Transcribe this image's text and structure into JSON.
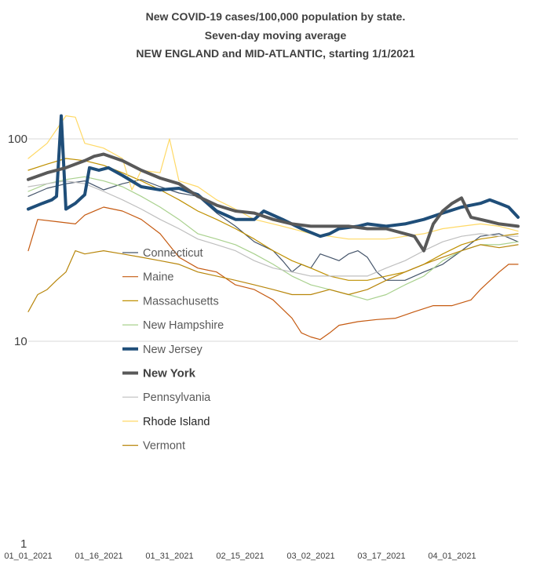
{
  "chart_data": {
    "type": "line",
    "title_lines": [
      "New COVID-19 cases/100,000 population by state.",
      "Seven-day moving average",
      "NEW ENGLAND and MID-ATLANTIC, starting 1/1/2021"
    ],
    "y_scale": "log",
    "ylim": [
      1,
      100
    ],
    "y_ticks": [
      "100",
      "10",
      "1"
    ],
    "x_start": "01_01_2021",
    "x_end": "04_13_2021",
    "x_ticks": [
      "01_01_2021",
      "01_16_2021",
      "01_31_2021",
      "02_15_2021",
      "03_02_2021",
      "03_17_2021",
      "04_01_2021"
    ],
    "grid": "horizontal",
    "legend_position": "left-inside",
    "series": [
      {
        "name": "Connecticut",
        "color": "#44546a",
        "weight": "thin",
        "values": [
          [
            0,
            52
          ],
          [
            4,
            57
          ],
          [
            8,
            60
          ],
          [
            12,
            62
          ],
          [
            16,
            56
          ],
          [
            20,
            60
          ],
          [
            24,
            63
          ],
          [
            28,
            58
          ],
          [
            32,
            54
          ],
          [
            36,
            52
          ],
          [
            40,
            43
          ],
          [
            44,
            37
          ],
          [
            48,
            31
          ],
          [
            52,
            28
          ],
          [
            54,
            25
          ],
          [
            56,
            22
          ],
          [
            58,
            24
          ],
          [
            60,
            23
          ],
          [
            62,
            27
          ],
          [
            64,
            26
          ],
          [
            66,
            25
          ],
          [
            68,
            27
          ],
          [
            70,
            28
          ],
          [
            72,
            26
          ],
          [
            74,
            22
          ],
          [
            76,
            20
          ],
          [
            80,
            20
          ],
          [
            84,
            22
          ],
          [
            88,
            24
          ],
          [
            92,
            28
          ],
          [
            96,
            33
          ],
          [
            100,
            34
          ],
          [
            104,
            31
          ]
        ]
      },
      {
        "name": "Maine",
        "color": "#c55a11",
        "weight": "thin",
        "values": [
          [
            0,
            28
          ],
          [
            2,
            40
          ],
          [
            6,
            39
          ],
          [
            10,
            38
          ],
          [
            12,
            42
          ],
          [
            16,
            46
          ],
          [
            20,
            44
          ],
          [
            24,
            40
          ],
          [
            28,
            34
          ],
          [
            32,
            26
          ],
          [
            36,
            23
          ],
          [
            40,
            22
          ],
          [
            44,
            19
          ],
          [
            48,
            18
          ],
          [
            52,
            16
          ],
          [
            56,
            13
          ],
          [
            58,
            11
          ],
          [
            60,
            10.5
          ],
          [
            62,
            10.2
          ],
          [
            64,
            11
          ],
          [
            66,
            12
          ],
          [
            70,
            12.5
          ],
          [
            74,
            12.8
          ],
          [
            78,
            13
          ],
          [
            82,
            14
          ],
          [
            86,
            15
          ],
          [
            90,
            15
          ],
          [
            94,
            16
          ],
          [
            96,
            18
          ],
          [
            100,
            22
          ],
          [
            102,
            24
          ],
          [
            104,
            24
          ]
        ]
      },
      {
        "name": "Massachusetts",
        "color": "#bf9000",
        "weight": "thin",
        "values": [
          [
            0,
            70
          ],
          [
            4,
            75
          ],
          [
            8,
            80
          ],
          [
            12,
            78
          ],
          [
            16,
            74
          ],
          [
            20,
            68
          ],
          [
            24,
            62
          ],
          [
            28,
            56
          ],
          [
            32,
            50
          ],
          [
            36,
            44
          ],
          [
            40,
            40
          ],
          [
            44,
            36
          ],
          [
            48,
            32
          ],
          [
            52,
            28
          ],
          [
            56,
            25
          ],
          [
            60,
            23
          ],
          [
            64,
            21
          ],
          [
            68,
            20
          ],
          [
            72,
            20
          ],
          [
            76,
            21
          ],
          [
            80,
            22
          ],
          [
            84,
            24
          ],
          [
            88,
            27
          ],
          [
            92,
            30
          ],
          [
            96,
            32
          ],
          [
            100,
            33
          ],
          [
            104,
            34
          ]
        ]
      },
      {
        "name": "New Hampshire",
        "color": "#a9d18e",
        "weight": "thin",
        "values": [
          [
            0,
            55
          ],
          [
            4,
            60
          ],
          [
            8,
            63
          ],
          [
            12,
            65
          ],
          [
            16,
            62
          ],
          [
            20,
            58
          ],
          [
            24,
            52
          ],
          [
            28,
            46
          ],
          [
            32,
            40
          ],
          [
            36,
            34
          ],
          [
            40,
            32
          ],
          [
            44,
            30
          ],
          [
            48,
            27
          ],
          [
            52,
            24
          ],
          [
            56,
            21
          ],
          [
            60,
            19
          ],
          [
            64,
            18
          ],
          [
            68,
            17
          ],
          [
            72,
            16
          ],
          [
            76,
            17
          ],
          [
            80,
            19
          ],
          [
            84,
            21
          ],
          [
            88,
            25
          ],
          [
            92,
            28
          ],
          [
            96,
            30
          ],
          [
            100,
            30
          ],
          [
            104,
            31
          ]
        ]
      },
      {
        "name": "New Jersey",
        "color": "#1f4e79",
        "weight": "thick",
        "values": [
          [
            0,
            45
          ],
          [
            3,
            48
          ],
          [
            5,
            50
          ],
          [
            6,
            52
          ],
          [
            7,
            130
          ],
          [
            8,
            45
          ],
          [
            10,
            48
          ],
          [
            12,
            53
          ],
          [
            13,
            72
          ],
          [
            15,
            70
          ],
          [
            17,
            72
          ],
          [
            20,
            66
          ],
          [
            24,
            58
          ],
          [
            28,
            56
          ],
          [
            32,
            57
          ],
          [
            36,
            53
          ],
          [
            40,
            44
          ],
          [
            44,
            40
          ],
          [
            48,
            40
          ],
          [
            50,
            44
          ],
          [
            54,
            40
          ],
          [
            58,
            36
          ],
          [
            62,
            33
          ],
          [
            64,
            34
          ],
          [
            66,
            36
          ],
          [
            70,
            37
          ],
          [
            72,
            38
          ],
          [
            76,
            37
          ],
          [
            80,
            38
          ],
          [
            84,
            40
          ],
          [
            88,
            43
          ],
          [
            92,
            46
          ],
          [
            96,
            48
          ],
          [
            98,
            50
          ],
          [
            100,
            48
          ],
          [
            102,
            46
          ],
          [
            104,
            41
          ]
        ]
      },
      {
        "name": "New York",
        "color": "#595959",
        "weight": "thick",
        "values": [
          [
            0,
            63
          ],
          [
            4,
            68
          ],
          [
            8,
            72
          ],
          [
            12,
            78
          ],
          [
            14,
            82
          ],
          [
            16,
            84
          ],
          [
            20,
            78
          ],
          [
            24,
            70
          ],
          [
            28,
            64
          ],
          [
            32,
            60
          ],
          [
            36,
            52
          ],
          [
            40,
            47
          ],
          [
            44,
            44
          ],
          [
            48,
            43
          ],
          [
            52,
            40
          ],
          [
            56,
            38
          ],
          [
            60,
            37
          ],
          [
            64,
            37
          ],
          [
            68,
            37
          ],
          [
            72,
            36
          ],
          [
            76,
            36
          ],
          [
            80,
            34
          ],
          [
            82,
            33
          ],
          [
            84,
            28
          ],
          [
            86,
            38
          ],
          [
            88,
            44
          ],
          [
            90,
            48
          ],
          [
            92,
            51
          ],
          [
            94,
            41
          ],
          [
            96,
            40
          ],
          [
            98,
            39
          ],
          [
            100,
            38
          ],
          [
            104,
            37
          ]
        ]
      },
      {
        "name": "Pennsylvania",
        "color": "#bfbfbf",
        "weight": "thin",
        "values": [
          [
            0,
            58
          ],
          [
            4,
            60
          ],
          [
            8,
            62
          ],
          [
            12,
            60
          ],
          [
            16,
            55
          ],
          [
            20,
            50
          ],
          [
            24,
            45
          ],
          [
            28,
            40
          ],
          [
            32,
            36
          ],
          [
            36,
            32
          ],
          [
            40,
            30
          ],
          [
            44,
            28
          ],
          [
            48,
            25
          ],
          [
            52,
            23
          ],
          [
            56,
            22
          ],
          [
            60,
            21
          ],
          [
            64,
            21
          ],
          [
            68,
            21
          ],
          [
            72,
            21
          ],
          [
            76,
            23
          ],
          [
            80,
            25
          ],
          [
            84,
            28
          ],
          [
            88,
            31
          ],
          [
            92,
            33
          ],
          [
            96,
            34
          ],
          [
            100,
            33
          ],
          [
            104,
            33
          ]
        ]
      },
      {
        "name": "Rhode Island",
        "color": "#ffd966",
        "weight": "thin",
        "values": [
          [
            0,
            80
          ],
          [
            4,
            95
          ],
          [
            8,
            130
          ],
          [
            10,
            128
          ],
          [
            12,
            95
          ],
          [
            16,
            90
          ],
          [
            20,
            80
          ],
          [
            22,
            56
          ],
          [
            24,
            70
          ],
          [
            28,
            68
          ],
          [
            30,
            100
          ],
          [
            32,
            62
          ],
          [
            36,
            58
          ],
          [
            40,
            50
          ],
          [
            44,
            45
          ],
          [
            48,
            40
          ],
          [
            52,
            38
          ],
          [
            56,
            36
          ],
          [
            60,
            34
          ],
          [
            64,
            33
          ],
          [
            68,
            32
          ],
          [
            72,
            32
          ],
          [
            76,
            32
          ],
          [
            80,
            33
          ],
          [
            84,
            34
          ],
          [
            88,
            36
          ],
          [
            92,
            37
          ],
          [
            96,
            38
          ],
          [
            100,
            37
          ],
          [
            104,
            35
          ]
        ]
      },
      {
        "name": "Vermont",
        "color": "#b8860b",
        "weight": "thin",
        "values": [
          [
            0,
            14
          ],
          [
            2,
            17
          ],
          [
            4,
            18
          ],
          [
            6,
            20
          ],
          [
            8,
            22
          ],
          [
            10,
            28
          ],
          [
            12,
            27
          ],
          [
            16,
            28
          ],
          [
            20,
            27
          ],
          [
            24,
            26
          ],
          [
            28,
            25
          ],
          [
            32,
            24
          ],
          [
            36,
            22
          ],
          [
            40,
            21
          ],
          [
            44,
            20
          ],
          [
            48,
            19
          ],
          [
            52,
            18
          ],
          [
            56,
            17
          ],
          [
            60,
            17
          ],
          [
            64,
            18
          ],
          [
            68,
            17
          ],
          [
            72,
            18
          ],
          [
            76,
            20
          ],
          [
            80,
            22
          ],
          [
            84,
            24
          ],
          [
            88,
            26
          ],
          [
            92,
            28
          ],
          [
            96,
            30
          ],
          [
            100,
            29
          ],
          [
            104,
            30
          ]
        ]
      }
    ]
  }
}
